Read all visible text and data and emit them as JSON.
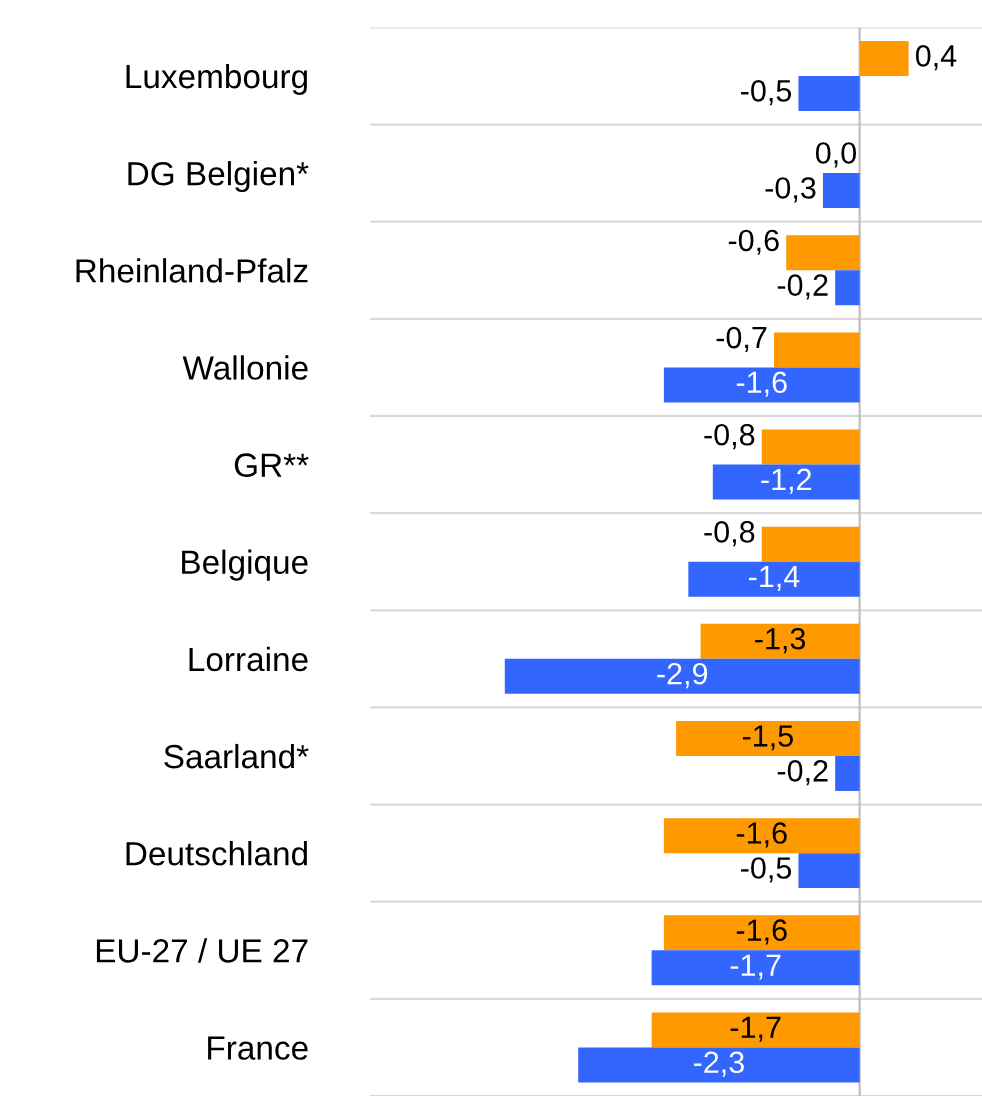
{
  "chart_data": {
    "type": "bar",
    "orientation": "horizontal",
    "categories": [
      "Luxembourg",
      "DG Belgien*",
      "Rheinland-Pfalz",
      "Wallonie",
      "GR**",
      "Belgique",
      "Lorraine",
      "Saarland*",
      "Deutschland",
      "EU-27 / UE 27",
      "France"
    ],
    "series": [
      {
        "color": "#ff9900",
        "values": [
          0.4,
          0.0,
          -0.6,
          -0.7,
          -0.8,
          -0.8,
          -1.3,
          -1.5,
          -1.6,
          -1.6,
          -1.7
        ],
        "value_labels": [
          "0,4",
          "0,0",
          "-0,6",
          "-0,7",
          "-0,8",
          "-0,8",
          "-1,3",
          "-1,5",
          "-1,6",
          "-1,6",
          "-1,7"
        ]
      },
      {
        "color": "#3366ff",
        "values": [
          -0.5,
          -0.3,
          -0.2,
          -1.6,
          -1.2,
          -1.4,
          -2.9,
          -0.2,
          -0.5,
          -1.7,
          -2.3
        ],
        "value_labels": [
          "-0,5",
          "-0,3",
          "-0,2",
          "-1,6",
          "-1,2",
          "-1,4",
          "-2,9",
          "-0,2",
          "-0,5",
          "-1,7",
          "-2,3"
        ]
      }
    ],
    "xlim": [
      -4,
      1
    ],
    "tick_labels": "y",
    "grid": "y",
    "legend": false
  }
}
